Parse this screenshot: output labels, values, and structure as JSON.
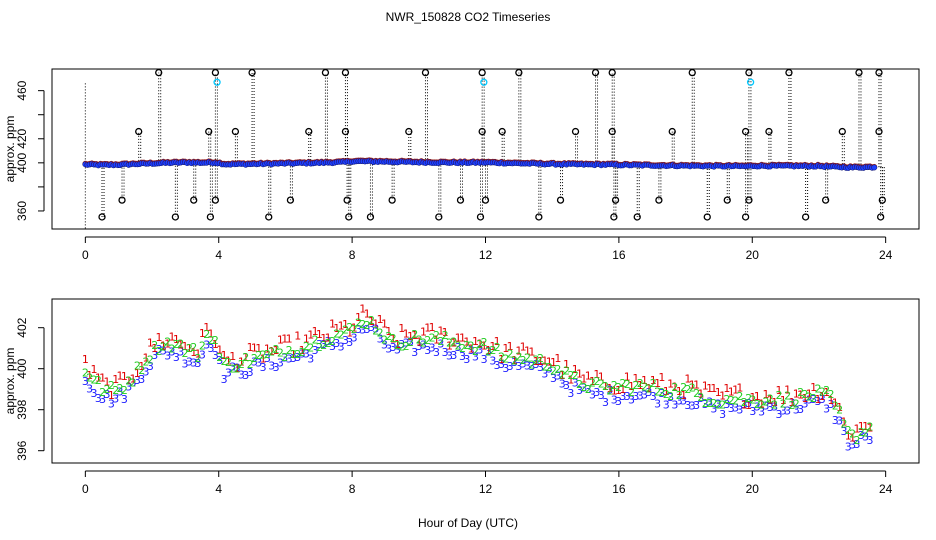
{
  "figure": {
    "title": "NWR_150828  CO2 Timeseries",
    "xlabel": "Hour of Day (UTC)"
  },
  "colors": {
    "raw_point": "#000000",
    "raw_highlight": "#00c8ff",
    "mean_fill": "#1e40ff",
    "mean_alt": "#e23b2e",
    "series_1": "#e00000",
    "series_2": "#22cc22",
    "series_3": "#1a1aff"
  },
  "chart_data": [
    {
      "type": "scatter",
      "name": "top-panel",
      "ylabel": "approx. ppm",
      "xlim": [
        -1,
        25
      ],
      "ylim": [
        345,
        478
      ],
      "xticks": [
        0,
        4,
        8,
        12,
        16,
        20,
        24
      ],
      "yticks": [
        360,
        380,
        400,
        420,
        440,
        460
      ],
      "ytick_labels": [
        "360",
        "",
        "400",
        "420",
        "",
        "460"
      ],
      "baseline": [
        [
          0,
          398.6
        ],
        [
          0.5,
          398.2
        ],
        [
          1,
          398.4
        ],
        [
          1.5,
          399
        ],
        [
          2,
          399.5
        ],
        [
          2.5,
          400
        ],
        [
          3,
          400.3
        ],
        [
          3.5,
          400.1
        ],
        [
          3.9,
          400.3
        ],
        [
          4.2,
          398.8
        ],
        [
          5,
          399
        ],
        [
          6,
          399.5
        ],
        [
          7,
          400
        ],
        [
          7.8,
          400.6
        ],
        [
          8,
          401.3
        ],
        [
          9,
          401
        ],
        [
          10,
          400.5
        ],
        [
          11,
          400.2
        ],
        [
          11.9,
          400.2
        ],
        [
          12,
          400.3
        ],
        [
          13,
          399.6
        ],
        [
          14,
          399
        ],
        [
          15,
          398.6
        ],
        [
          15.9,
          398.5
        ],
        [
          16,
          398.3
        ],
        [
          17,
          397.9
        ],
        [
          18,
          397.6
        ],
        [
          19,
          397.3
        ],
        [
          19.9,
          397.2
        ],
        [
          20,
          397.5
        ],
        [
          21,
          397.4
        ],
        [
          22,
          397.3
        ],
        [
          22.5,
          396.6
        ],
        [
          23,
          396.2
        ],
        [
          23.6,
          396.4
        ]
      ],
      "high_spikes": [
        2.2,
        3.9,
        5.0,
        7.2,
        7.8,
        10.2,
        11.9,
        13.0,
        15.3,
        15.8,
        18.2,
        19.9,
        21.1,
        23.2,
        23.8
      ],
      "spike_top_value": 475,
      "cyan_points": [
        [
          3.95,
          467
        ],
        [
          11.95,
          467
        ],
        [
          19.95,
          467
        ]
      ],
      "mid_spikes": [
        1.6,
        3.7,
        4.5,
        6.7,
        7.8,
        9.7,
        11.9,
        12.5,
        14.7,
        15.8,
        17.6,
        19.8,
        20.5,
        22.7,
        23.8
      ],
      "mid_value": 426,
      "low_points": [
        0.5,
        2.7,
        3.75,
        5.5,
        7.9,
        8.55,
        10.6,
        11.85,
        13.6,
        15.85,
        16.55,
        18.65,
        19.8,
        21.6,
        23.85
      ],
      "low_value": 355,
      "low2_points": [
        1.1,
        3.25,
        3.9,
        6.15,
        7.85,
        9.2,
        11.25,
        12.0,
        14.25,
        15.9,
        17.2,
        19.25,
        19.9,
        22.2,
        23.9
      ],
      "low2_value": 369,
      "first_line_top": 466
    },
    {
      "type": "scatter",
      "name": "bottom-panel",
      "ylabel": "approx. ppm",
      "xlim": [
        -1,
        25
      ],
      "ylim": [
        395.4,
        403.4
      ],
      "xticks": [
        0,
        4,
        8,
        12,
        16,
        20,
        24
      ],
      "yticks": [
        396,
        398,
        400,
        402
      ],
      "series": [
        {
          "name": "1",
          "label": "1",
          "offset": 0.25,
          "noise": 0.45
        },
        {
          "name": "2",
          "label": "2",
          "offset": 0.05,
          "noise": 0.3
        },
        {
          "name": "3",
          "label": "3",
          "offset": -0.35,
          "noise": 0.32
        }
      ],
      "baseline": [
        [
          0,
          399.9
        ],
        [
          0.3,
          399.3
        ],
        [
          0.6,
          398.9
        ],
        [
          1,
          398.9
        ],
        [
          1.4,
          399.5
        ],
        [
          1.8,
          400.4
        ],
        [
          2.2,
          401.1
        ],
        [
          2.6,
          401.2
        ],
        [
          3.0,
          400.9
        ],
        [
          3.4,
          400.7
        ],
        [
          3.7,
          401.8
        ],
        [
          3.9,
          401.3
        ],
        [
          4.1,
          400.1
        ],
        [
          4.5,
          400.2
        ],
        [
          5,
          400.4
        ],
        [
          5.5,
          400.6
        ],
        [
          6,
          400.8
        ],
        [
          6.5,
          401.0
        ],
        [
          7,
          401.3
        ],
        [
          7.5,
          401.6
        ],
        [
          8,
          401.8
        ],
        [
          8.4,
          402.4
        ],
        [
          8.8,
          401.9
        ],
        [
          9.2,
          401.2
        ],
        [
          9.8,
          401.4
        ],
        [
          10.5,
          401.4
        ],
        [
          11.2,
          401.2
        ],
        [
          12,
          401.0
        ],
        [
          12.5,
          400.6
        ],
        [
          13,
          400.5
        ],
        [
          13.5,
          400.3
        ],
        [
          14,
          400.2
        ],
        [
          14.5,
          399.5
        ],
        [
          15,
          399.2
        ],
        [
          15.5,
          399.0
        ],
        [
          16,
          399.1
        ],
        [
          16.5,
          399.1
        ],
        [
          17,
          399.0
        ],
        [
          17.5,
          398.9
        ],
        [
          18,
          398.9
        ],
        [
          18.5,
          398.6
        ],
        [
          19,
          398.4
        ],
        [
          19.5,
          398.5
        ],
        [
          20,
          398.4
        ],
        [
          20.5,
          398.5
        ],
        [
          21,
          398.4
        ],
        [
          21.5,
          398.6
        ],
        [
          22,
          398.7
        ],
        [
          22.3,
          398.6
        ],
        [
          22.6,
          397.8
        ],
        [
          22.8,
          396.9
        ],
        [
          23,
          396.6
        ],
        [
          23.3,
          396.9
        ],
        [
          23.6,
          397.1
        ]
      ]
    }
  ]
}
